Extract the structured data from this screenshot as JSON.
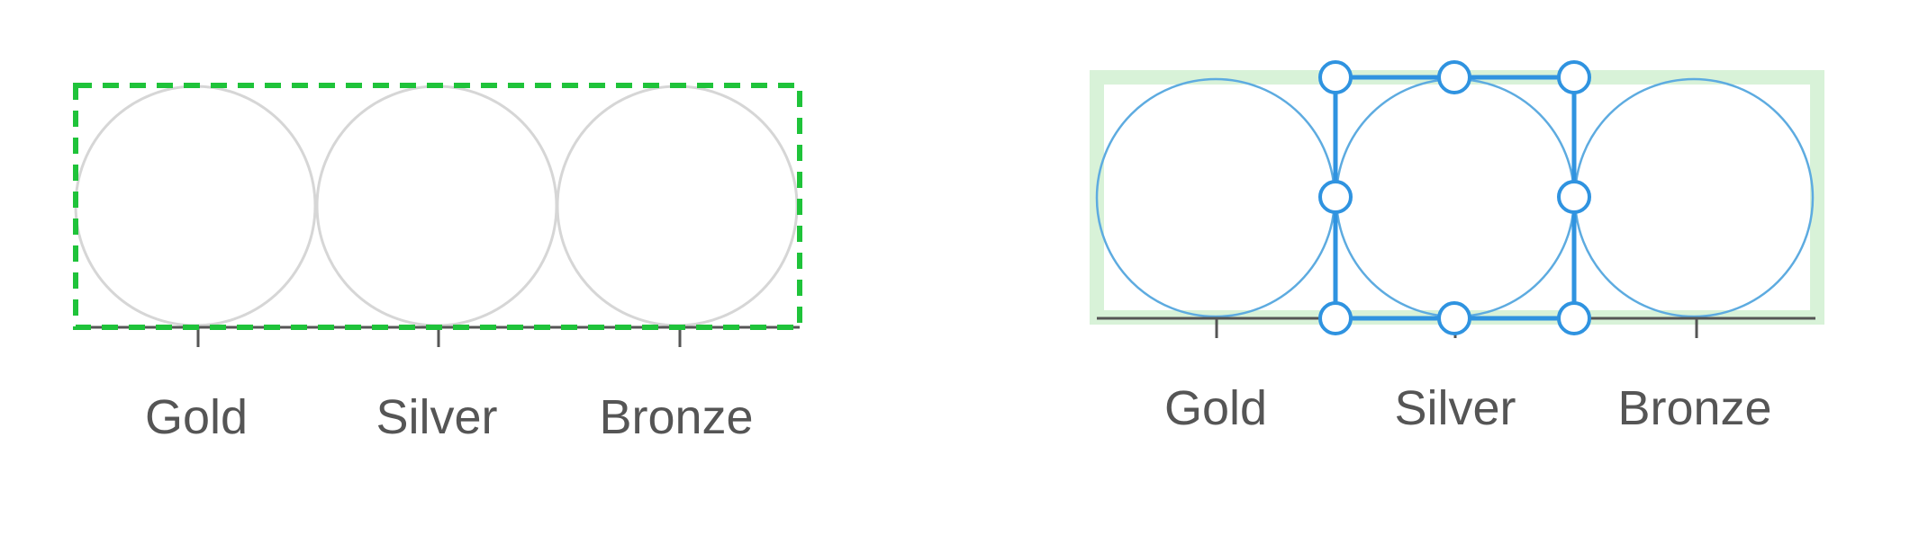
{
  "panels": [
    {
      "id": "left",
      "state": "drop-target",
      "categories": [
        "Gold",
        "Silver",
        "Bronze"
      ],
      "circle_stroke": "#d6d6d6",
      "axis_color": "#555555",
      "frame_color": "#1fc33a"
    },
    {
      "id": "right",
      "state": "selected",
      "categories": [
        "Gold",
        "Silver",
        "Bronze"
      ],
      "circle_stroke": "#5dabe0",
      "axis_color": "#555555",
      "highlight_color": "#d8f2d8",
      "selection_color": "#2f93e0"
    }
  ]
}
